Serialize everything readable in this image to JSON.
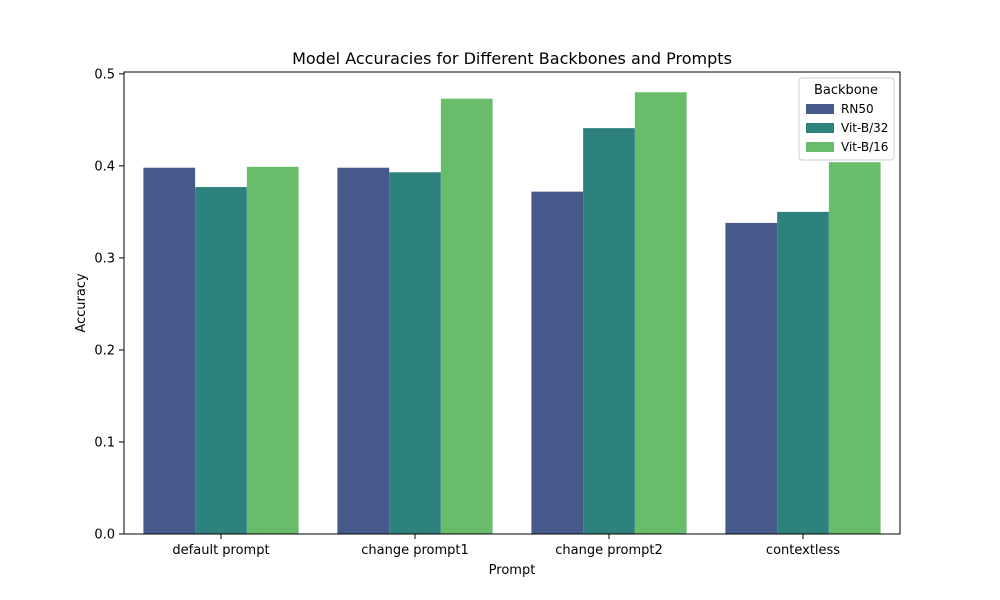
{
  "chart_data": {
    "type": "bar",
    "title": "Model Accuracies for Different Backbones and Prompts",
    "xlabel": "Prompt",
    "ylabel": "Accuracy",
    "categories": [
      "default prompt",
      "change prompt1",
      "change prompt2",
      "contextless"
    ],
    "series": [
      {
        "name": "RN50",
        "color": "#45598a",
        "values": [
          0.398,
          0.398,
          0.372,
          0.338
        ]
      },
      {
        "name": "Vit-B/32",
        "color": "#2e827e",
        "values": [
          0.377,
          0.393,
          0.441,
          0.35
        ]
      },
      {
        "name": "Vit-B/16",
        "color": "#69bd6a",
        "values": [
          0.399,
          0.473,
          0.48,
          0.404
        ]
      }
    ],
    "ylim": [
      0,
      0.502
    ],
    "yticks": [
      "0.0",
      "0.1",
      "0.2",
      "0.3",
      "0.4",
      "0.5"
    ],
    "ytick_values": [
      0,
      0.1,
      0.2,
      0.3,
      0.4,
      0.5
    ],
    "legend": {
      "title": "Backbone",
      "placement": "top-right"
    },
    "grid": false
  }
}
